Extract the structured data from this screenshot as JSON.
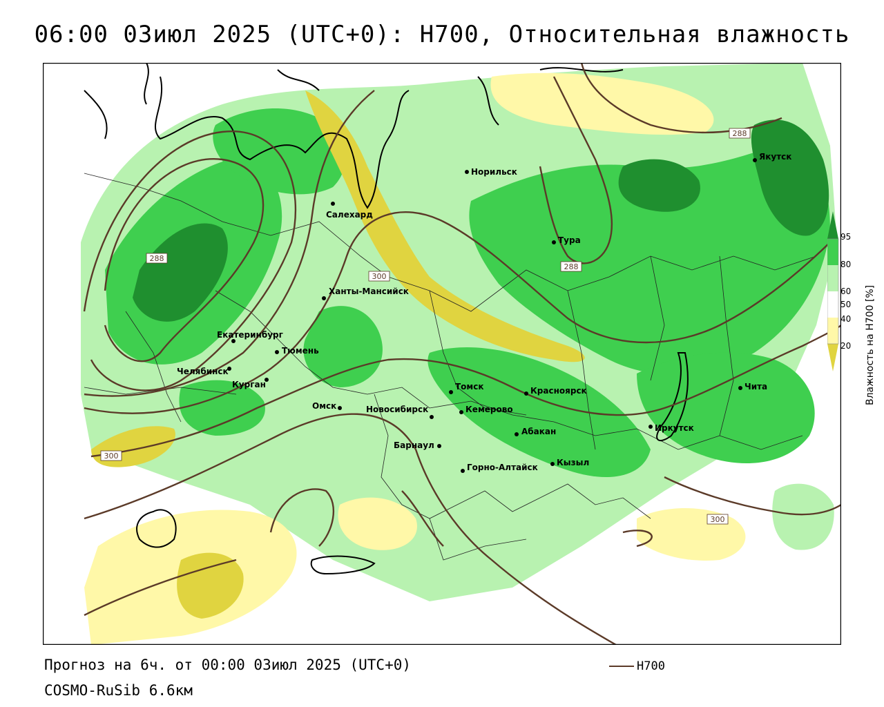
{
  "title": "06:00 03июл 2025 (UTC+0): H700, Относительная влажность",
  "footer": {
    "forecast": "Прогноз на 6ч. от 00:00 03июл 2025 (UTC+0)",
    "model": "COSMO-RuSib 6.6км"
  },
  "legend": {
    "label": "H700"
  },
  "colorbar": {
    "title": "Влажность на H700 [%]",
    "ticks": [
      "95",
      "80",
      "60",
      "50",
      "40",
      "20"
    ],
    "colors": {
      "high": "#1f8f2f",
      "mid": "#3fcf4f",
      "low": "#b8f2b0",
      "neutral": "#ffffff",
      "dry1": "#fff8a8",
      "dry2": "#e0d440"
    }
  },
  "isolines": {
    "labels": [
      "288",
      "288",
      "288",
      "300",
      "300",
      "300"
    ]
  },
  "cities": [
    {
      "id": "norilsk",
      "name": "Норильск"
    },
    {
      "id": "yakutsk",
      "name": "Якутск"
    },
    {
      "id": "salekhard",
      "name": "Салехард"
    },
    {
      "id": "tura",
      "name": "Тура"
    },
    {
      "id": "khanty",
      "name": "Ханты-Мансийск"
    },
    {
      "id": "ekb",
      "name": "Екатеринбург"
    },
    {
      "id": "tyumen",
      "name": "Тюмень"
    },
    {
      "id": "chelyabinsk",
      "name": "Челябинск"
    },
    {
      "id": "kurgan",
      "name": "Курган"
    },
    {
      "id": "omsk",
      "name": "Омск"
    },
    {
      "id": "novosibirsk",
      "name": "Новосибирск"
    },
    {
      "id": "tomsk",
      "name": "Томск"
    },
    {
      "id": "kemerovo",
      "name": "Кемерово"
    },
    {
      "id": "krasnoyarsk",
      "name": "Красноярск"
    },
    {
      "id": "abakan",
      "name": "Абакан"
    },
    {
      "id": "barnaul",
      "name": "Барнаул"
    },
    {
      "id": "gorno",
      "name": "Горно-Алтайск"
    },
    {
      "id": "kyzyl",
      "name": "Кызыл"
    },
    {
      "id": "irkutsk",
      "name": "Иркутск"
    },
    {
      "id": "chita",
      "name": "Чита"
    }
  ]
}
